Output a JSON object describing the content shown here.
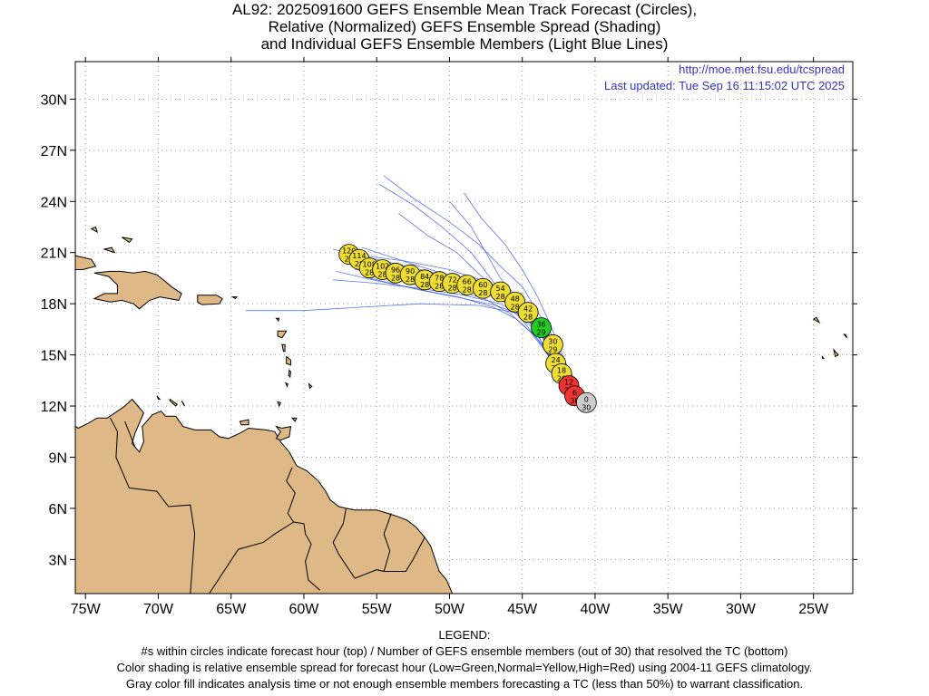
{
  "title": {
    "line1": "AL92: 2025091600 GEFS Ensemble Mean Track Forecast (Circles),",
    "line2": "Relative (Normalized) GEFS Ensemble Spread (Shading)",
    "line3": "and Individual GEFS Ensemble Members (Light Blue Lines)"
  },
  "header_links": {
    "url": "http://moe.met.fsu.edu/tcspread",
    "updated": "Last updated: Tue Sep 16 11:15:02 UTC 2025"
  },
  "legend": {
    "heading": "LEGEND:",
    "line1": "#s within circles indicate forecast hour (top) / Number of GEFS ensemble members (out of 30) that resolved the TC (bottom)",
    "line2": "Color shading is relative ensemble spread for forecast hour (Low=Green,Normal=Yellow,High=Red) using 2004-11 GEFS climatology.",
    "line3": "Gray color fill indicates analysis time or not enough ensemble members forecasting a TC (less than 50%) to warrant classification."
  },
  "colors": {
    "land": "#deb887",
    "ensemble_line": "#3355ee",
    "normal": "#eedd33",
    "low": "#22cc22",
    "high": "#ee3333",
    "analysis": "#cccccc",
    "url_text": "#3333cc"
  },
  "axes": {
    "lon_ticks": [
      "75W",
      "70W",
      "65W",
      "60W",
      "55W",
      "50W",
      "45W",
      "40W",
      "35W",
      "30W",
      "25W"
    ],
    "lat_ticks": [
      "30N",
      "27N",
      "24N",
      "21N",
      "18N",
      "15N",
      "12N",
      "9N",
      "6N",
      "3N"
    ],
    "lon_range": [
      -75.7,
      -22.3
    ],
    "lat_range": [
      1.0,
      32.2
    ]
  },
  "mean_track": [
    {
      "hour": "0",
      "members": "30",
      "lon": -40.6,
      "lat": 12.2,
      "spread": "analysis"
    },
    {
      "hour": "6",
      "members": "30",
      "lon": -41.4,
      "lat": 12.6,
      "spread": "high"
    },
    {
      "hour": "12",
      "members": "29",
      "lon": -41.8,
      "lat": 13.2,
      "spread": "high"
    },
    {
      "hour": "18",
      "members": "29",
      "lon": -42.3,
      "lat": 13.9,
      "spread": "normal"
    },
    {
      "hour": "24",
      "members": "29",
      "lon": -42.7,
      "lat": 14.5,
      "spread": "normal"
    },
    {
      "hour": "30",
      "members": "29",
      "lon": -42.9,
      "lat": 15.6,
      "spread": "normal"
    },
    {
      "hour": "36",
      "members": "29",
      "lon": -43.7,
      "lat": 16.6,
      "spread": "low"
    },
    {
      "hour": "42",
      "members": "28",
      "lon": -44.6,
      "lat": 17.5,
      "spread": "normal"
    },
    {
      "hour": "48",
      "members": "28",
      "lon": -45.5,
      "lat": 18.1,
      "spread": "normal"
    },
    {
      "hour": "54",
      "members": "28",
      "lon": -46.5,
      "lat": 18.7,
      "spread": "normal"
    },
    {
      "hour": "60",
      "members": "28",
      "lon": -47.7,
      "lat": 18.9,
      "spread": "normal"
    },
    {
      "hour": "66",
      "members": "28",
      "lon": -48.8,
      "lat": 19.1,
      "spread": "normal"
    },
    {
      "hour": "72",
      "members": "28",
      "lon": -49.8,
      "lat": 19.2,
      "spread": "normal"
    },
    {
      "hour": "78",
      "members": "28",
      "lon": -50.7,
      "lat": 19.3,
      "spread": "normal"
    },
    {
      "hour": "84",
      "members": "28",
      "lon": -51.7,
      "lat": 19.4,
      "spread": "normal"
    },
    {
      "hour": "90",
      "members": "28",
      "lon": -52.7,
      "lat": 19.7,
      "spread": "normal"
    },
    {
      "hour": "96",
      "members": "28",
      "lon": -53.7,
      "lat": 19.8,
      "spread": "normal"
    },
    {
      "hour": "102",
      "members": "28",
      "lon": -54.6,
      "lat": 20.0,
      "spread": "normal"
    },
    {
      "hour": "108",
      "members": "28",
      "lon": -55.5,
      "lat": 20.1,
      "spread": "normal"
    },
    {
      "hour": "114",
      "members": "28",
      "lon": -56.2,
      "lat": 20.6,
      "spread": "normal"
    },
    {
      "hour": "120",
      "members": "28",
      "lon": -56.9,
      "lat": 20.9,
      "spread": "normal"
    }
  ],
  "ensemble_members": [
    [
      [
        -40.6,
        12.0
      ],
      [
        -41.5,
        12.9
      ],
      [
        -42.4,
        14.0
      ],
      [
        -43.0,
        15.3
      ],
      [
        -43.8,
        16.4
      ],
      [
        -45.2,
        17.6
      ],
      [
        -47.0,
        18.6
      ],
      [
        -49.5,
        19.5
      ],
      [
        -52.0,
        20.0
      ],
      [
        -55.0,
        20.6
      ],
      [
        -58.0,
        21.2
      ]
    ],
    [
      [
        -40.8,
        12.2
      ],
      [
        -41.8,
        13.2
      ],
      [
        -42.5,
        14.5
      ],
      [
        -43.4,
        15.8
      ],
      [
        -44.6,
        17.0
      ],
      [
        -46.2,
        18.1
      ],
      [
        -48.0,
        18.8
      ],
      [
        -50.5,
        19.2
      ],
      [
        -53.5,
        19.6
      ],
      [
        -56.5,
        20.0
      ]
    ],
    [
      [
        -40.9,
        11.8
      ],
      [
        -41.6,
        12.8
      ],
      [
        -42.8,
        14.2
      ],
      [
        -43.6,
        15.6
      ],
      [
        -44.3,
        16.9
      ],
      [
        -45.5,
        18.2
      ],
      [
        -47.5,
        19.3
      ],
      [
        -50.0,
        20.0
      ],
      [
        -53.0,
        20.5
      ],
      [
        -57.5,
        21.0
      ]
    ],
    [
      [
        -41.2,
        12.1
      ],
      [
        -42.0,
        13.0
      ],
      [
        -42.6,
        14.2
      ],
      [
        -43.2,
        15.5
      ],
      [
        -43.9,
        16.5
      ],
      [
        -45.0,
        17.3
      ],
      [
        -46.8,
        17.9
      ],
      [
        -49.0,
        18.3
      ],
      [
        -52.0,
        18.8
      ],
      [
        -55.5,
        19.5
      ]
    ],
    [
      [
        -40.5,
        12.3
      ],
      [
        -41.3,
        13.4
      ],
      [
        -42.2,
        14.8
      ],
      [
        -43.0,
        16.0
      ],
      [
        -44.0,
        17.1
      ],
      [
        -45.5,
        18.3
      ],
      [
        -47.2,
        19.0
      ],
      [
        -49.8,
        19.6
      ],
      [
        -52.8,
        20.4
      ],
      [
        -56.0,
        21.3
      ]
    ],
    [
      [
        -40.7,
        12.0
      ],
      [
        -41.4,
        12.9
      ],
      [
        -42.3,
        14.1
      ],
      [
        -42.9,
        15.4
      ],
      [
        -43.5,
        16.2
      ],
      [
        -44.2,
        17.0
      ],
      [
        -45.0,
        18.0
      ],
      [
        -46.5,
        19.5
      ],
      [
        -47.5,
        21.0
      ],
      [
        -48.5,
        22.5
      ],
      [
        -50.0,
        24.0
      ]
    ],
    [
      [
        -40.9,
        12.4
      ],
      [
        -41.6,
        13.5
      ],
      [
        -42.1,
        14.7
      ],
      [
        -42.7,
        16.0
      ],
      [
        -43.3,
        17.2
      ],
      [
        -44.0,
        18.5
      ],
      [
        -45.0,
        20.0
      ],
      [
        -46.2,
        21.5
      ],
      [
        -47.8,
        23.0
      ],
      [
        -49.0,
        24.5
      ]
    ],
    [
      [
        -41.0,
        12.2
      ],
      [
        -41.8,
        13.5
      ],
      [
        -42.4,
        15.0
      ],
      [
        -43.1,
        16.4
      ],
      [
        -44.0,
        17.6
      ],
      [
        -45.0,
        19.0
      ],
      [
        -46.5,
        20.2
      ],
      [
        -48.0,
        21.5
      ],
      [
        -50.0,
        22.8
      ],
      [
        -52.5,
        24.2
      ],
      [
        -54.5,
        25.5
      ]
    ],
    [
      [
        -40.8,
        12.1
      ],
      [
        -41.6,
        13.0
      ],
      [
        -42.5,
        14.2
      ],
      [
        -43.5,
        15.4
      ],
      [
        -44.5,
        16.5
      ],
      [
        -45.5,
        17.6
      ],
      [
        -47.0,
        19.3
      ],
      [
        -48.5,
        21.0
      ],
      [
        -50.5,
        22.5
      ],
      [
        -52.5,
        23.8
      ],
      [
        -54.8,
        25.0
      ]
    ],
    [
      [
        -40.6,
        12.2
      ],
      [
        -41.5,
        13.3
      ],
      [
        -42.4,
        14.6
      ],
      [
        -43.3,
        15.7
      ],
      [
        -44.5,
        16.9
      ],
      [
        -46.0,
        18.2
      ],
      [
        -47.8,
        19.6
      ],
      [
        -49.5,
        21.0
      ],
      [
        -51.5,
        22.0
      ],
      [
        -53.5,
        23.3
      ]
    ],
    [
      [
        -41.0,
        12.0
      ],
      [
        -41.9,
        13.1
      ],
      [
        -42.8,
        14.3
      ],
      [
        -43.5,
        15.5
      ],
      [
        -44.3,
        16.6
      ],
      [
        -45.6,
        17.5
      ],
      [
        -48.0,
        17.9
      ],
      [
        -52.0,
        18.0
      ],
      [
        -56.0,
        17.8
      ],
      [
        -60.0,
        17.6
      ],
      [
        -64.0,
        17.6
      ]
    ],
    [
      [
        -40.7,
        12.3
      ],
      [
        -41.4,
        13.1
      ],
      [
        -42.0,
        14.0
      ],
      [
        -42.8,
        15.2
      ],
      [
        -43.6,
        16.2
      ],
      [
        -44.8,
        17.2
      ],
      [
        -46.5,
        18.0
      ],
      [
        -49.0,
        18.5
      ],
      [
        -52.0,
        18.9
      ],
      [
        -55.0,
        19.2
      ],
      [
        -58.0,
        19.4
      ]
    ],
    [
      [
        -40.8,
        12.0
      ],
      [
        -41.6,
        12.9
      ],
      [
        -42.6,
        14.1
      ],
      [
        -43.4,
        15.2
      ],
      [
        -44.4,
        16.3
      ],
      [
        -45.8,
        17.4
      ],
      [
        -47.6,
        18.3
      ],
      [
        -50.0,
        18.9
      ],
      [
        -53.0,
        19.5
      ],
      [
        -56.0,
        20.3
      ],
      [
        -57.5,
        20.8
      ]
    ],
    [
      [
        -40.9,
        12.3
      ],
      [
        -41.7,
        13.3
      ],
      [
        -42.3,
        14.5
      ],
      [
        -42.9,
        15.8
      ],
      [
        -43.7,
        16.8
      ],
      [
        -45.0,
        17.9
      ],
      [
        -46.8,
        18.7
      ],
      [
        -49.2,
        19.4
      ],
      [
        -52.2,
        19.9
      ],
      [
        -55.2,
        20.5
      ]
    ],
    [
      [
        -40.6,
        11.9
      ],
      [
        -41.4,
        12.7
      ],
      [
        -42.3,
        13.8
      ],
      [
        -43.1,
        15.0
      ],
      [
        -44.1,
        16.1
      ],
      [
        -45.4,
        17.1
      ],
      [
        -47.0,
        17.8
      ],
      [
        -49.4,
        18.4
      ],
      [
        -52.5,
        18.9
      ],
      [
        -55.8,
        19.5
      ],
      [
        -57.8,
        19.9
      ]
    ]
  ],
  "islands": {
    "hispaniola": "Hispaniola",
    "puerto_rico": "Puerto Rico"
  }
}
